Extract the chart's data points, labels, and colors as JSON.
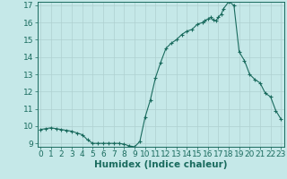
{
  "x": [
    0,
    0.5,
    1,
    1.5,
    2,
    2.5,
    3,
    3.5,
    4,
    4.5,
    5,
    5.5,
    6,
    6.5,
    7,
    7.5,
    8,
    8.5,
    9,
    9.5,
    10,
    10.5,
    11,
    11.5,
    12,
    12.5,
    13,
    13.5,
    14,
    14.5,
    15,
    15.5,
    15.7,
    16,
    16.3,
    16.5,
    16.8,
    17,
    17.3,
    17.5,
    18,
    18.5,
    19,
    19.5,
    20,
    20.5,
    21,
    21.5,
    22,
    22.5,
    23
  ],
  "y": [
    9.8,
    9.85,
    9.9,
    9.85,
    9.8,
    9.75,
    9.7,
    9.6,
    9.5,
    9.2,
    9.0,
    9.0,
    9.0,
    9.0,
    9.0,
    9.0,
    8.95,
    8.85,
    8.8,
    9.1,
    10.5,
    11.5,
    12.8,
    13.7,
    14.5,
    14.8,
    15.0,
    15.3,
    15.5,
    15.6,
    15.9,
    16.0,
    16.1,
    16.2,
    16.3,
    16.15,
    16.1,
    16.3,
    16.5,
    16.8,
    17.2,
    17.0,
    14.3,
    13.8,
    13.0,
    12.7,
    12.5,
    11.9,
    11.7,
    10.9,
    10.4
  ],
  "ylim_min": 9,
  "ylim_max": 17,
  "yticks": [
    9,
    10,
    11,
    12,
    13,
    14,
    15,
    16,
    17
  ],
  "xlim_min": -0.3,
  "xlim_max": 23.3,
  "xticks": [
    0,
    1,
    2,
    3,
    4,
    5,
    6,
    7,
    8,
    9,
    10,
    11,
    12,
    13,
    14,
    15,
    16,
    17,
    18,
    19,
    20,
    21,
    22,
    23
  ],
  "xlabel": "Humidex (Indice chaleur)",
  "line_color": "#1a6b5e",
  "marker": "+",
  "bg_color": "#c5e8e8",
  "grid_color": "#afd0d0",
  "axis_color": "#1a6b5e",
  "xlabel_fontsize": 7.5,
  "tick_fontsize": 6.5
}
